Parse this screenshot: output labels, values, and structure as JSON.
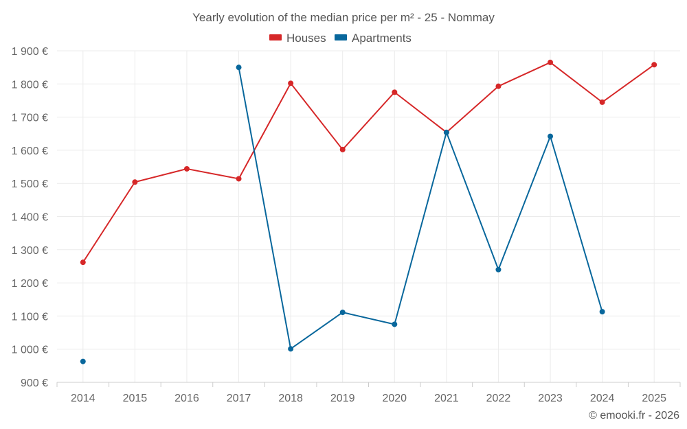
{
  "chart_data": {
    "type": "line",
    "title": "Yearly evolution of the median price per m² - 25 - Nommay",
    "categories": [
      "2014",
      "2015",
      "2016",
      "2017",
      "2018",
      "2019",
      "2020",
      "2021",
      "2022",
      "2023",
      "2024",
      "2025"
    ],
    "series": [
      {
        "name": "Houses",
        "color": "#d62728",
        "values": [
          1262,
          1504,
          1544,
          1514,
          1802,
          1602,
          1775,
          1654,
          1793,
          1865,
          1745,
          1858
        ]
      },
      {
        "name": "Apartments",
        "color": "#08679c",
        "values": [
          963,
          null,
          null,
          1850,
          1001,
          1111,
          1075,
          1654,
          1240,
          1642,
          1113,
          null
        ]
      }
    ],
    "ylim": [
      900,
      1900
    ],
    "yticks": [
      900,
      1000,
      1100,
      1200,
      1300,
      1400,
      1500,
      1600,
      1700,
      1800,
      1900
    ],
    "ytick_labels": [
      "900 €",
      "1 000 €",
      "1 100 €",
      "1 200 €",
      "1 300 €",
      "1 400 €",
      "1 500 €",
      "1 600 €",
      "1 700 €",
      "1 800 €",
      "1 900 €"
    ],
    "xlabel": "",
    "ylabel": "",
    "grid": true,
    "legend_position": "top-center"
  },
  "credit": "© emooki.fr - 2026"
}
